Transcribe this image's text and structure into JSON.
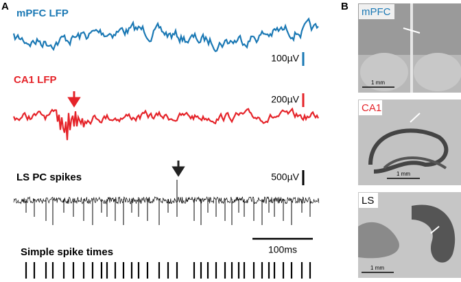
{
  "panel_a": {
    "label": "A",
    "traces": [
      {
        "label": "mPFC LFP",
        "scale": "100µV"
      },
      {
        "label": "CA1 LFP",
        "scale": "200µV"
      },
      {
        "label": "LS PC spikes",
        "scale": "500µV"
      }
    ],
    "time_scale": "100ms",
    "raster_label": "Simple spike times"
  },
  "panel_b": {
    "label": "B",
    "images": [
      {
        "label": "mPFC",
        "scale": "1 mm"
      },
      {
        "label": "CA1",
        "scale": "1 mm"
      },
      {
        "label": "LS",
        "scale": "1 mm"
      }
    ]
  }
}
